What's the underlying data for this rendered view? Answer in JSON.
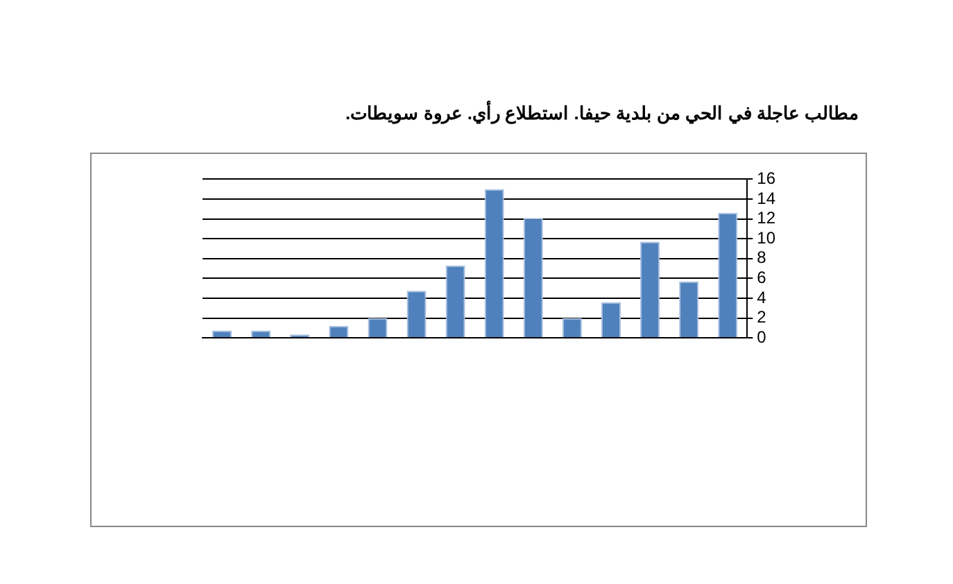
{
  "chart_data": {
    "type": "bar",
    "title": "مطالب عاجلة في الحي من بلدية حيفا. استطلاع رأي. عروة سويطات.",
    "categories": [
      null,
      null,
      null,
      null,
      null,
      null,
      null,
      null,
      null,
      null,
      null,
      null,
      null,
      null
    ],
    "values": [
      0.75,
      0.75,
      0.35,
      1.2,
      2,
      4.75,
      7.3,
      15,
      12.1,
      2,
      3.6,
      9.7,
      5.7,
      12.6
    ],
    "color": "#4f81bd",
    "ylim": [
      0,
      16
    ],
    "yticks": [
      0,
      2,
      4,
      6,
      8,
      10,
      12,
      14,
      16
    ],
    "grid": "y",
    "legend": false
  }
}
